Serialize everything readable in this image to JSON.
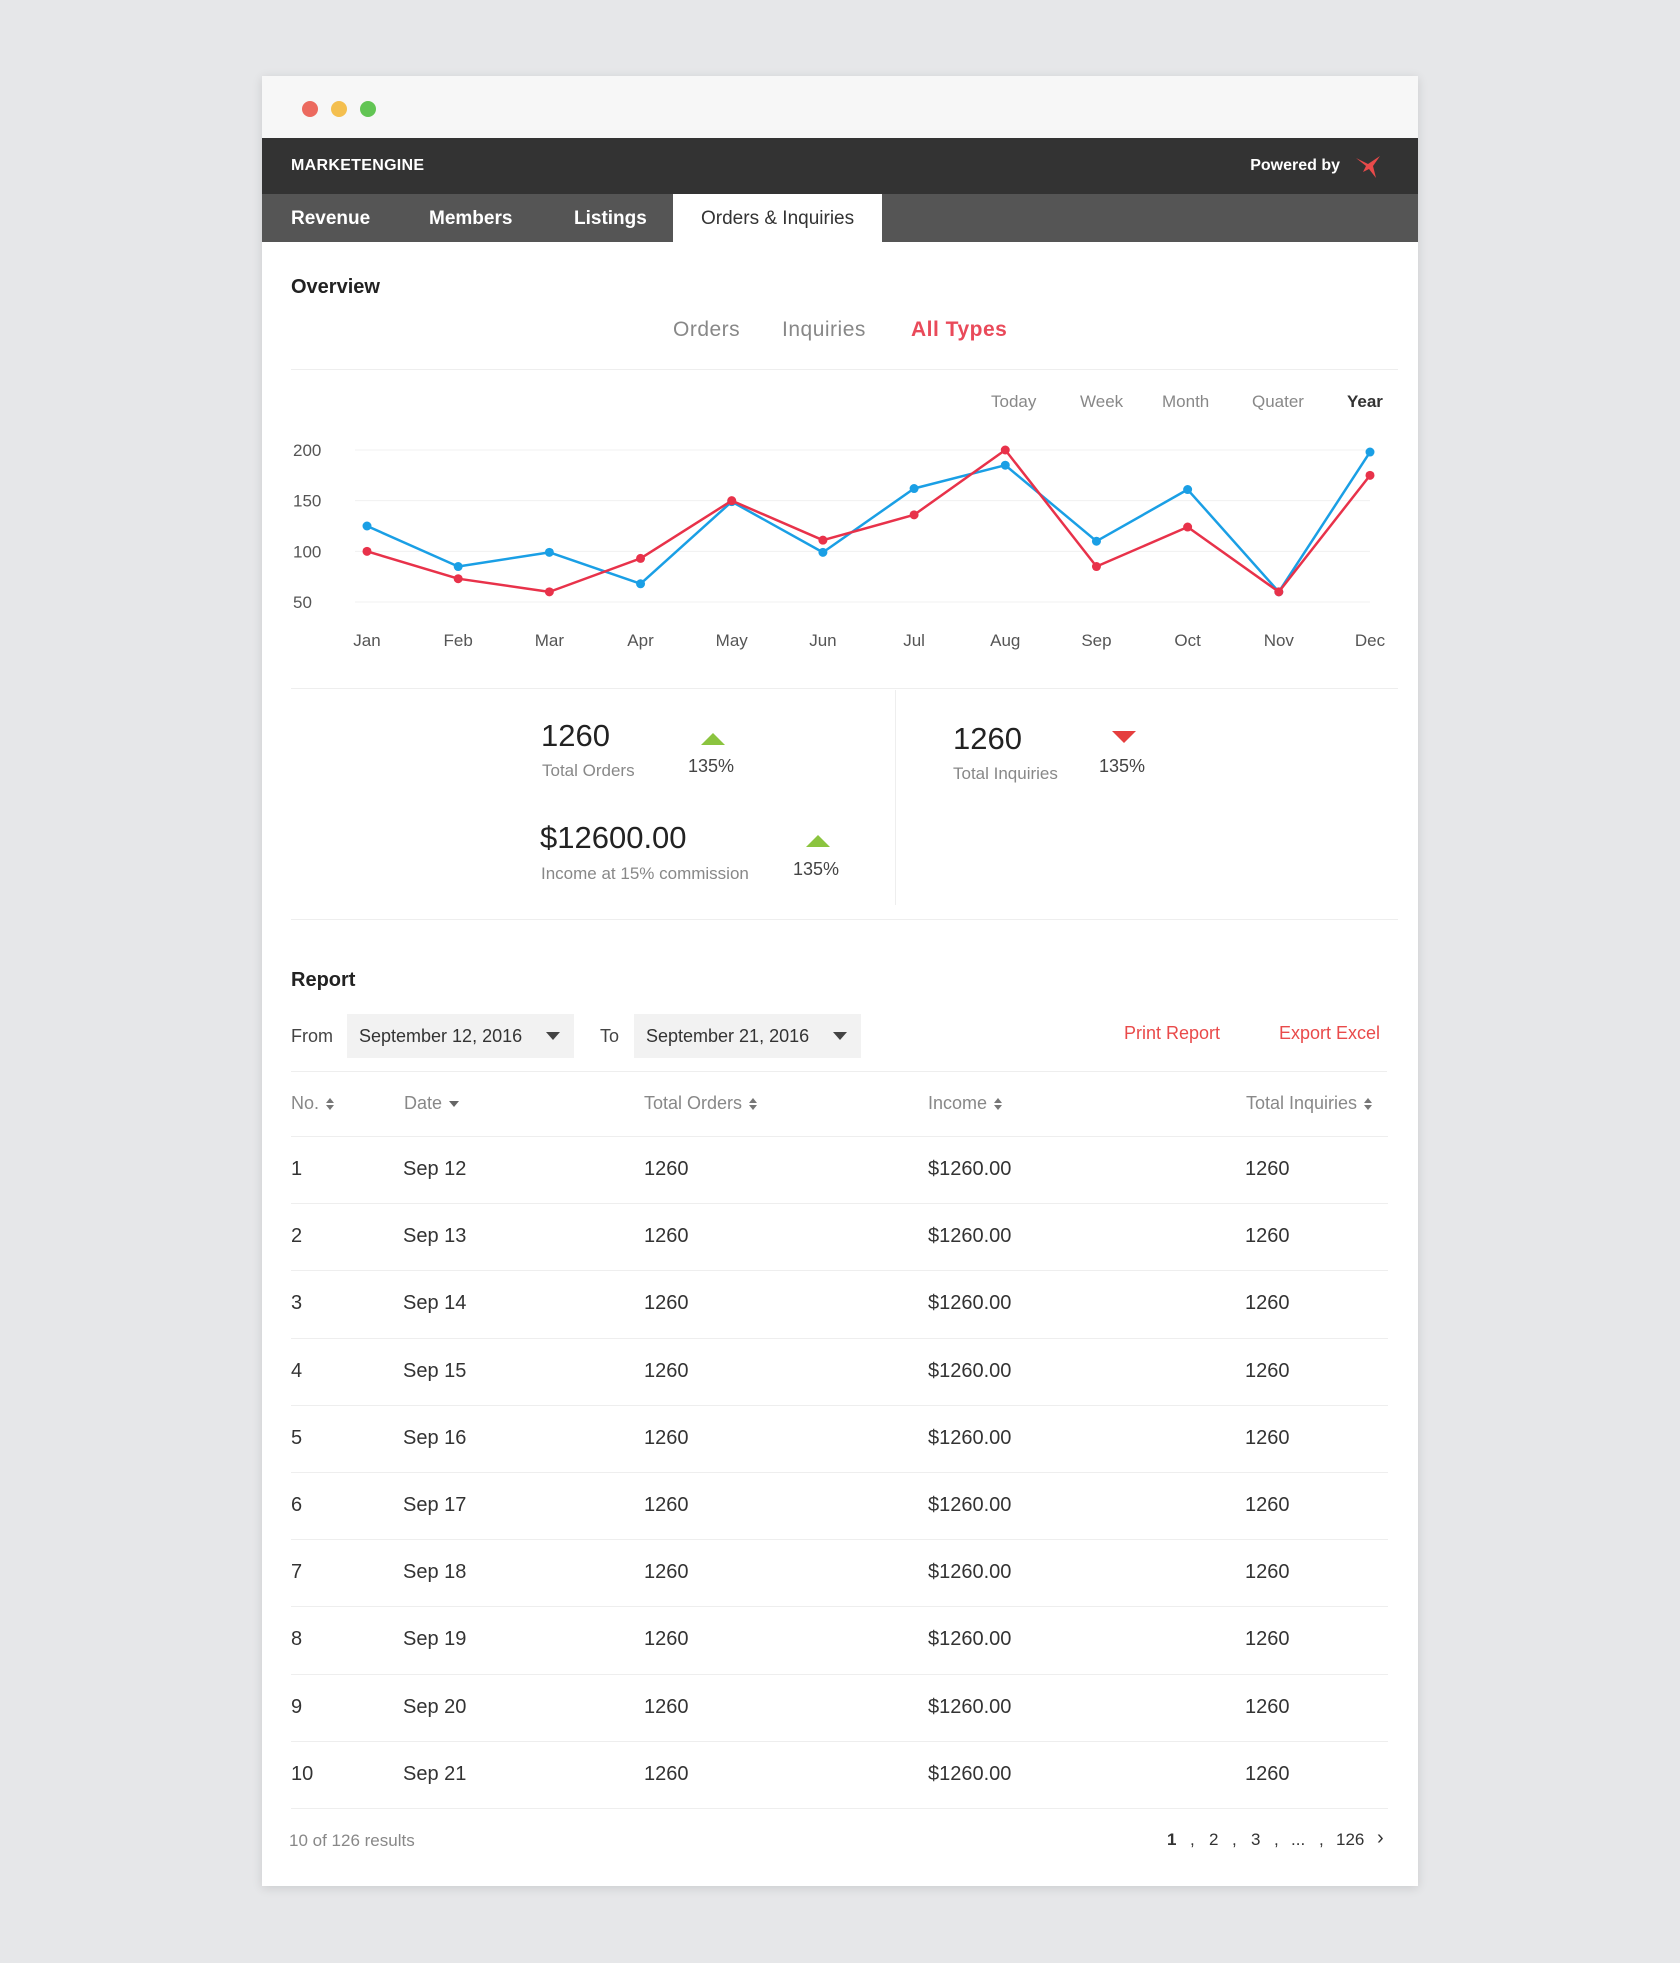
{
  "app": {
    "brand": "MARKETENGINE",
    "powered_by": "Powered by"
  },
  "tabs": [
    {
      "label": "Revenue"
    },
    {
      "label": "Members"
    },
    {
      "label": "Listings"
    },
    {
      "label": "Orders & Inquiries",
      "active": true
    }
  ],
  "overview": {
    "title": "Overview",
    "type_filters": [
      "Orders",
      "Inquiries",
      "All Types"
    ],
    "active_type": "All Types",
    "periods": [
      "Today",
      "Week",
      "Month",
      "Quater",
      "Year"
    ],
    "active_period": "Year"
  },
  "chart_data": {
    "type": "line",
    "categories": [
      "Jan",
      "Feb",
      "Mar",
      "Apr",
      "May",
      "Jun",
      "Jul",
      "Aug",
      "Sep",
      "Oct",
      "Nov",
      "Dec"
    ],
    "y_ticks": [
      200,
      150,
      100,
      50
    ],
    "ylim": [
      50,
      200
    ],
    "grid": true,
    "series": [
      {
        "color": "#1a9fe5",
        "values": [
          125,
          85,
          99,
          68,
          149,
          99,
          162,
          185,
          110,
          161,
          60,
          198
        ]
      },
      {
        "color": "#e8324a",
        "values": [
          100,
          73,
          60,
          93,
          150,
          111,
          136,
          200,
          85,
          124,
          60,
          175
        ]
      }
    ]
  },
  "stats": {
    "total_orders": {
      "value": "1260",
      "label": "Total Orders",
      "change": "135%",
      "trend": "up"
    },
    "income": {
      "value": "$12600.00",
      "label": "Income at 15% commission",
      "change": "135%",
      "trend": "up"
    },
    "total_inquiries": {
      "value": "1260",
      "label": "Total Inquiries",
      "change": "135%",
      "trend": "down"
    }
  },
  "report": {
    "title": "Report",
    "from_label": "From",
    "from_value": "September 12, 2016",
    "to_label": "To",
    "to_value": "September 21, 2016",
    "print_label": "Print Report",
    "export_label": "Export Excel",
    "columns": [
      "No.",
      "Date",
      "Total Orders",
      "Income",
      "Total Inquiries"
    ],
    "rows": [
      {
        "no": "1",
        "date": "Sep 12",
        "orders": "1260",
        "income": "$1260.00",
        "inquiries": "1260"
      },
      {
        "no": "2",
        "date": "Sep 13",
        "orders": "1260",
        "income": "$1260.00",
        "inquiries": "1260"
      },
      {
        "no": "3",
        "date": "Sep 14",
        "orders": "1260",
        "income": "$1260.00",
        "inquiries": "1260"
      },
      {
        "no": "4",
        "date": "Sep 15",
        "orders": "1260",
        "income": "$1260.00",
        "inquiries": "1260"
      },
      {
        "no": "5",
        "date": "Sep 16",
        "orders": "1260",
        "income": "$1260.00",
        "inquiries": "1260"
      },
      {
        "no": "6",
        "date": "Sep 17",
        "orders": "1260",
        "income": "$1260.00",
        "inquiries": "1260"
      },
      {
        "no": "7",
        "date": "Sep 18",
        "orders": "1260",
        "income": "$1260.00",
        "inquiries": "1260"
      },
      {
        "no": "8",
        "date": "Sep 19",
        "orders": "1260",
        "income": "$1260.00",
        "inquiries": "1260"
      },
      {
        "no": "9",
        "date": "Sep 20",
        "orders": "1260",
        "income": "$1260.00",
        "inquiries": "1260"
      },
      {
        "no": "10",
        "date": "Sep 21",
        "orders": "1260",
        "income": "$1260.00",
        "inquiries": "1260"
      }
    ],
    "results_text": "10 of 126 results",
    "pagination": {
      "pages": [
        "1",
        "2",
        "3",
        "...",
        "126"
      ],
      "current": "1",
      "separator": ",",
      "next": "›"
    }
  },
  "colors": {
    "accent": "#e94a5a",
    "up": "#8bc43f",
    "down": "#e53e3e"
  }
}
